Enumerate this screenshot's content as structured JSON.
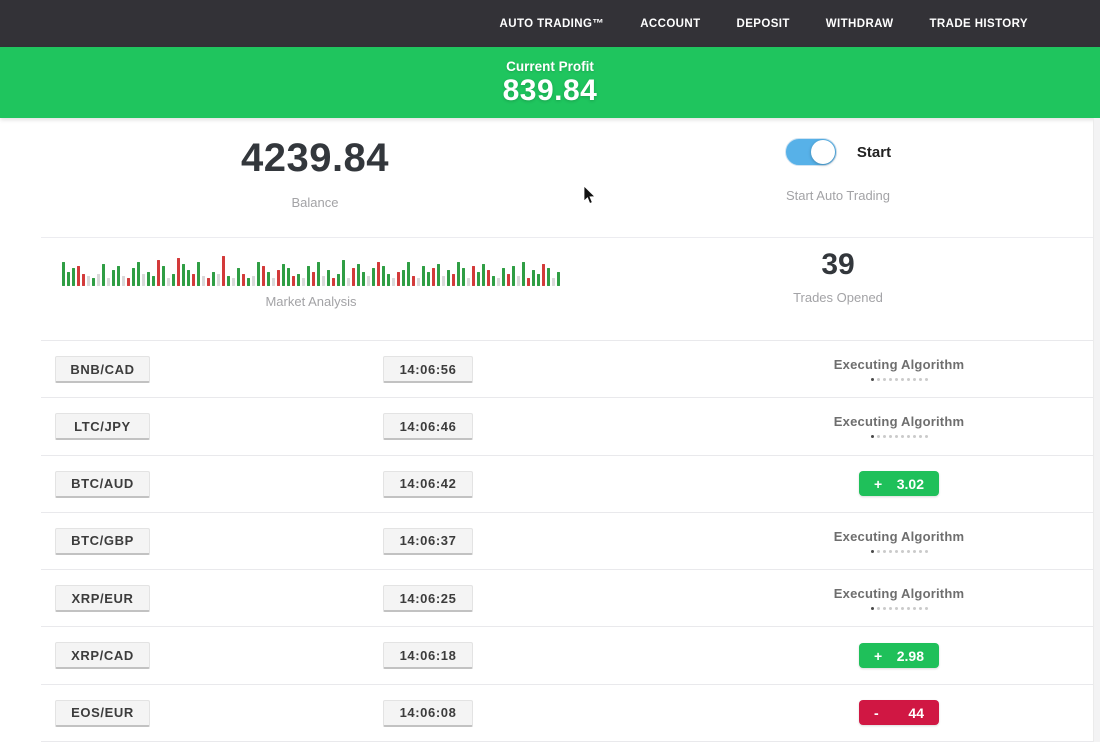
{
  "nav": {
    "items": [
      "AUTO TRADING™",
      "ACCOUNT",
      "DEPOSIT",
      "WITHDRAW",
      "TRADE HISTORY"
    ]
  },
  "profit_banner": {
    "label": "Current Profit",
    "value": "839.84"
  },
  "summary": {
    "balance": {
      "value": "4239.84",
      "label": "Balance"
    },
    "auto_trading": {
      "toggle_label": "Start",
      "label": "Start Auto Trading",
      "state": "on"
    },
    "market": {
      "label": "Market Analysis"
    },
    "trades": {
      "value": "39",
      "label": "Trades Opened"
    }
  },
  "colors": {
    "nav_bg": "#333237",
    "banner_green": "#1fc55e",
    "badge_green": "#1fc05a",
    "badge_red": "#d01743",
    "toggle_blue": "#57b1e8",
    "bar_green": "#2f9e44",
    "bar_red": "#d33a3a",
    "bar_gray": "#d8d8d8"
  },
  "chart_data": {
    "type": "bar",
    "title": "Market Analysis",
    "note": "decorative candlestick-style strip; bars listed left-to-right as [height_px, color g|r|l]",
    "bars": [
      [
        24,
        "g"
      ],
      [
        14,
        "g"
      ],
      [
        18,
        "g"
      ],
      [
        20,
        "r"
      ],
      [
        12,
        "r"
      ],
      [
        10,
        "l"
      ],
      [
        8,
        "g"
      ],
      [
        12,
        "l"
      ],
      [
        22,
        "g"
      ],
      [
        8,
        "l"
      ],
      [
        16,
        "g"
      ],
      [
        20,
        "g"
      ],
      [
        10,
        "l"
      ],
      [
        8,
        "r"
      ],
      [
        18,
        "g"
      ],
      [
        24,
        "g"
      ],
      [
        12,
        "l"
      ],
      [
        14,
        "g"
      ],
      [
        10,
        "g"
      ],
      [
        26,
        "r"
      ],
      [
        20,
        "g"
      ],
      [
        8,
        "l"
      ],
      [
        12,
        "g"
      ],
      [
        28,
        "r"
      ],
      [
        22,
        "g"
      ],
      [
        16,
        "g"
      ],
      [
        12,
        "r"
      ],
      [
        24,
        "g"
      ],
      [
        10,
        "l"
      ],
      [
        8,
        "r"
      ],
      [
        14,
        "g"
      ],
      [
        12,
        "l"
      ],
      [
        30,
        "r"
      ],
      [
        10,
        "g"
      ],
      [
        8,
        "l"
      ],
      [
        18,
        "g"
      ],
      [
        12,
        "r"
      ],
      [
        8,
        "g"
      ],
      [
        10,
        "l"
      ],
      [
        24,
        "g"
      ],
      [
        20,
        "r"
      ],
      [
        14,
        "g"
      ],
      [
        8,
        "l"
      ],
      [
        16,
        "r"
      ],
      [
        22,
        "g"
      ],
      [
        18,
        "g"
      ],
      [
        10,
        "r"
      ],
      [
        12,
        "g"
      ],
      [
        8,
        "l"
      ],
      [
        20,
        "g"
      ],
      [
        14,
        "r"
      ],
      [
        24,
        "g"
      ],
      [
        10,
        "l"
      ],
      [
        16,
        "g"
      ],
      [
        8,
        "r"
      ],
      [
        12,
        "g"
      ],
      [
        26,
        "g"
      ],
      [
        8,
        "l"
      ],
      [
        18,
        "r"
      ],
      [
        22,
        "g"
      ],
      [
        14,
        "g"
      ],
      [
        10,
        "l"
      ],
      [
        18,
        "g"
      ],
      [
        24,
        "r"
      ],
      [
        20,
        "g"
      ],
      [
        12,
        "g"
      ],
      [
        8,
        "l"
      ],
      [
        14,
        "r"
      ],
      [
        16,
        "g"
      ],
      [
        24,
        "g"
      ],
      [
        10,
        "r"
      ],
      [
        8,
        "l"
      ],
      [
        20,
        "g"
      ],
      [
        14,
        "g"
      ],
      [
        18,
        "r"
      ],
      [
        22,
        "g"
      ],
      [
        10,
        "l"
      ],
      [
        16,
        "g"
      ],
      [
        12,
        "r"
      ],
      [
        24,
        "g"
      ],
      [
        18,
        "g"
      ],
      [
        8,
        "l"
      ],
      [
        20,
        "r"
      ],
      [
        14,
        "g"
      ],
      [
        22,
        "g"
      ],
      [
        16,
        "r"
      ],
      [
        10,
        "g"
      ],
      [
        8,
        "l"
      ],
      [
        18,
        "g"
      ],
      [
        12,
        "r"
      ],
      [
        20,
        "g"
      ],
      [
        10,
        "l"
      ],
      [
        24,
        "g"
      ],
      [
        8,
        "r"
      ],
      [
        16,
        "g"
      ],
      [
        12,
        "g"
      ],
      [
        22,
        "r"
      ],
      [
        18,
        "g"
      ],
      [
        8,
        "l"
      ],
      [
        14,
        "g"
      ]
    ]
  },
  "trades_table": {
    "executing_label": "Executing Algorithm",
    "executing_dots": 10,
    "rows": [
      {
        "pair": "BNB/CAD",
        "time": "14:06:56",
        "status": {
          "type": "executing"
        }
      },
      {
        "pair": "LTC/JPY",
        "time": "14:06:46",
        "status": {
          "type": "executing"
        }
      },
      {
        "pair": "BTC/AUD",
        "time": "14:06:42",
        "status": {
          "type": "profit",
          "sign": "+",
          "value": "3.02"
        }
      },
      {
        "pair": "BTC/GBP",
        "time": "14:06:37",
        "status": {
          "type": "executing"
        }
      },
      {
        "pair": "XRP/EUR",
        "time": "14:06:25",
        "status": {
          "type": "executing"
        }
      },
      {
        "pair": "XRP/CAD",
        "time": "14:06:18",
        "status": {
          "type": "profit",
          "sign": "+",
          "value": "2.98"
        }
      },
      {
        "pair": "EOS/EUR",
        "time": "14:06:08",
        "status": {
          "type": "loss",
          "sign": "-",
          "value": "44"
        }
      }
    ]
  }
}
